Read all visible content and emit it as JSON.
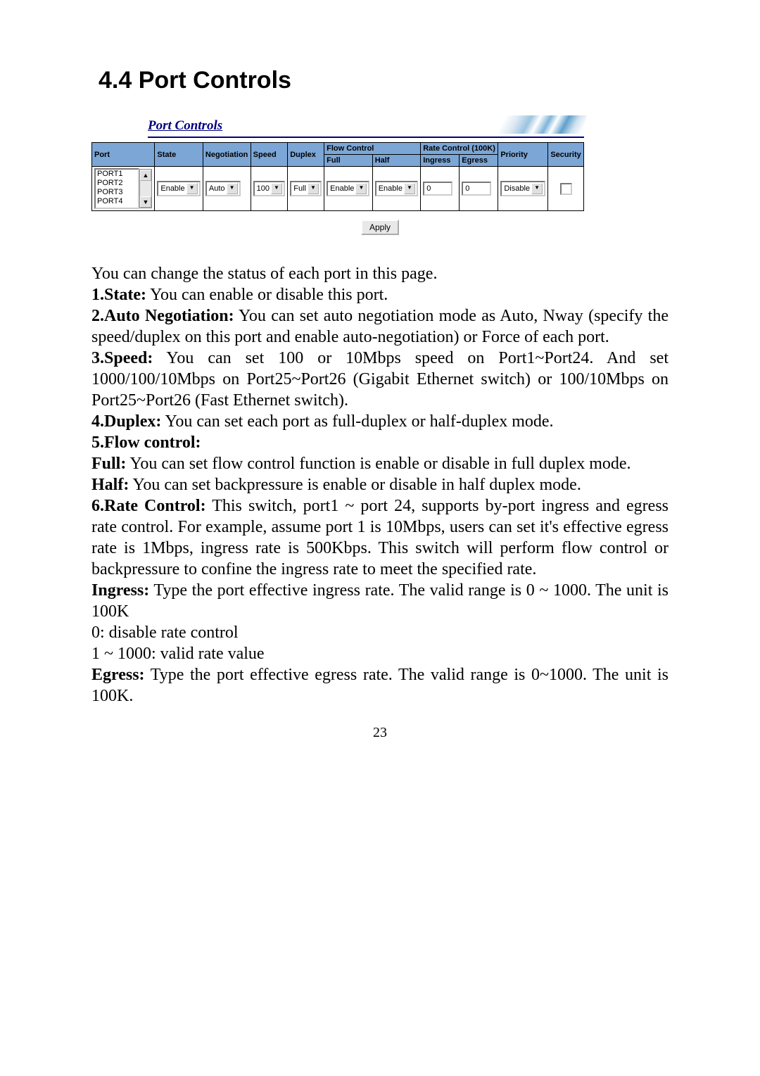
{
  "heading": "4.4 Port Controls",
  "screenshot": {
    "title": "Port Controls",
    "headers": {
      "port": "Port",
      "state": "State",
      "negotiation": "Negotiation",
      "speed": "Speed",
      "duplex": "Duplex",
      "flowcontrol": "Flow Control",
      "full": "Full",
      "half": "Half",
      "ratecontrol": "Rate Control (100K)",
      "ingress": "Ingress",
      "egress": "Egress",
      "priority": "Priority",
      "security": "Security"
    },
    "ports": [
      "PORT1",
      "PORT2",
      "PORT3",
      "PORT4"
    ],
    "row": {
      "state": "Enable",
      "negotiation": "Auto",
      "speed": "100",
      "duplex": "Full",
      "flow_full": "Enable",
      "flow_half": "Enable",
      "ingress": "0",
      "egress": "0",
      "priority": "Disable"
    },
    "apply": "Apply"
  },
  "text": {
    "intro": "You can change the status of each port in this page.",
    "l1b": "1.State:",
    "l1": " You can enable or disable this port.",
    "l2b": "2.Auto Negotiation:",
    "l2": " You can set auto negotiation mode as Auto, Nway (specify the speed/duplex on this port and enable auto-negotiation) or Force of each port.",
    "l3b": "3.Speed:",
    "l3": " You can set 100 or 10Mbps speed on Port1~Port24. And set 1000/100/10Mbps on Port25~Port26 (Gigabit Ethernet switch) or 100/10Mbps on Port25~Port26 (Fast Ethernet switch).",
    "l4b": "4.Duplex:",
    "l4": " You can set each port as full-duplex or half-duplex mode.",
    "l5b": "5.Flow control:",
    "l5fullb": "Full:",
    "l5full": " You can set flow control function is enable or disable in full duplex mode.",
    "l5halfb": "Half:",
    "l5half": " You can set backpressure is enable or disable in half duplex mode.",
    "l6b": "6.Rate Control:",
    "l6": " This switch, port1 ~ port 24, supports by-port ingress and egress rate control. For example, assume port 1 is 10Mbps, users can set it's effective egress rate is 1Mbps, ingress rate is 500Kbps. This switch will perform flow control or backpressure to confine the ingress rate to meet the specified rate.",
    "l6ib": "Ingress:",
    "l6i": " Type the port effective ingress rate. The valid range is 0 ~ 1000. The unit is 100K",
    "l6i2": "0: disable rate control",
    "l6i3": "1 ~ 1000: valid rate value",
    "l6eb": "Egress:",
    "l6e": " Type the port effective egress rate. The valid range is 0~1000. The unit is 100K."
  },
  "page_number": "23"
}
